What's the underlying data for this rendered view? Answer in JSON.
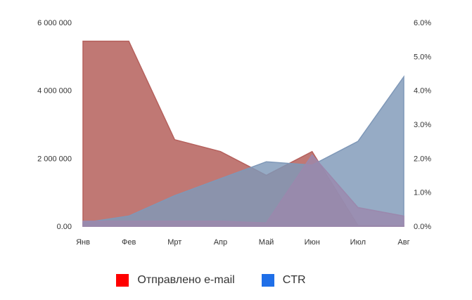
{
  "chart_data": {
    "type": "area",
    "categories": [
      "Янв",
      "Фев",
      "Мрт",
      "Апр",
      "Май",
      "Июн",
      "Июл",
      "Авг"
    ],
    "series": [
      {
        "name": "Отправлено e-mail",
        "axis": "left",
        "values": [
          5450000,
          5450000,
          2550000,
          2200000,
          1500000,
          2200000,
          20000,
          10000
        ],
        "color": "#b5605c",
        "legend_color": "#ff0000"
      },
      {
        "name": "CTR",
        "axis": "right",
        "values": [
          0.1,
          0.3,
          0.9,
          1.4,
          1.9,
          1.8,
          2.5,
          4.4
        ],
        "color": "#7f98b8",
        "legend_color": "#1f6fe8"
      },
      {
        "name": "",
        "axis": "right",
        "values": [
          0.15,
          0.15,
          0.15,
          0.15,
          0.1,
          2.1,
          0.55,
          0.3
        ],
        "color": "#9b88ad"
      }
    ],
    "left_axis": {
      "ticks": [
        0,
        2000000,
        4000000,
        6000000
      ],
      "tick_labels": [
        "0.00",
        "2 000 000",
        "4 000 000",
        "6 000 000"
      ],
      "ylim": [
        0,
        6000000
      ]
    },
    "right_axis": {
      "ticks": [
        0,
        1,
        2,
        3,
        4,
        5,
        6
      ],
      "tick_labels": [
        "0.0%",
        "1.0%",
        "2.0%",
        "3.0%",
        "4.0%",
        "5.0%",
        "6.0%"
      ],
      "ylim": [
        0,
        6
      ]
    },
    "grid": false,
    "legend_position": "bottom"
  },
  "legend": [
    {
      "label": "Отправлено e-mail",
      "color": "#ff0000"
    },
    {
      "label": "CTR",
      "color": "#1f6fe8"
    }
  ]
}
